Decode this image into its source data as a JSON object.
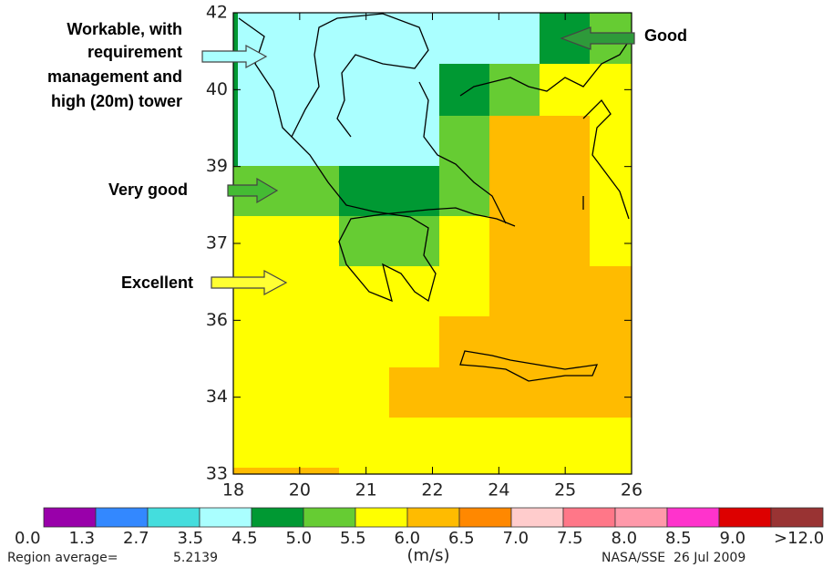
{
  "annotations": {
    "workable": [
      "Workable, with",
      "requirement",
      "management and",
      "high (20m) tower"
    ],
    "good": "Good",
    "very_good": "Very good",
    "excellent": "Excellent"
  },
  "x_axis": {
    "ticks": [
      18,
      20,
      21,
      22,
      24,
      25,
      26
    ]
  },
  "y_axis": {
    "ticks": [
      42,
      40,
      39,
      37,
      36,
      34,
      33
    ]
  },
  "legend": {
    "labels": [
      "0.0",
      "1.3",
      "2.7",
      "3.5",
      "4.5",
      "5.0",
      "5.5",
      "6.0",
      "6.5",
      "7.0",
      "7.5",
      "8.0",
      "8.5",
      "9.0",
      ">12.0"
    ],
    "colors": [
      "#9900aa",
      "#3388ff",
      "#44dddd",
      "#aaffff",
      "#009933",
      "#66cc33",
      "#ffff00",
      "#ffbb00",
      "#ff8800",
      "#ffcccc",
      "#ff7788",
      "#ff99aa",
      "#ff33cc",
      "#dd0000",
      "#993333"
    ],
    "unit": "(m/s)"
  },
  "footer": {
    "region_average_label": "Region average=",
    "region_average_value": "5.2139",
    "source": "NASA/SSE  26 Jul 2009"
  }
}
